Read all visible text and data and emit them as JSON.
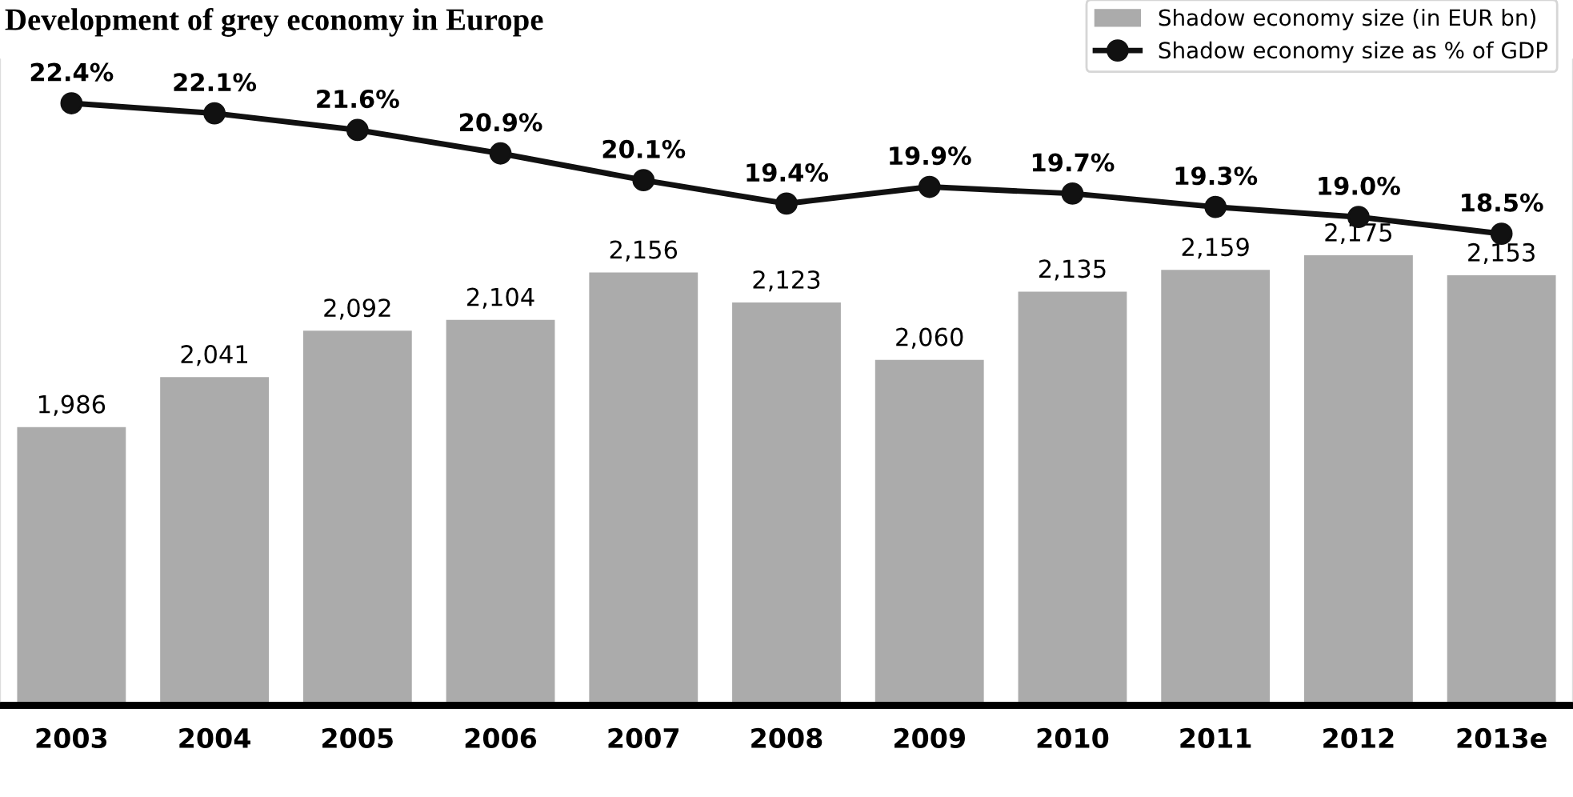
{
  "chart_data": {
    "type": "bar",
    "title": "Development of grey economy in Europe",
    "categories": [
      "2003",
      "2004",
      "2005",
      "2006",
      "2007",
      "2008",
      "2009",
      "2010",
      "2011",
      "2012",
      "2013e"
    ],
    "series": [
      {
        "name": "Shadow economy size (in EUR bn)",
        "color": "#ababab",
        "values": [
          1986,
          2041,
          2092,
          2104,
          2156,
          2123,
          2060,
          2135,
          2159,
          2175,
          2153
        ],
        "value_labels": [
          "1,986",
          "2,041",
          "2,092",
          "2,104",
          "2,156",
          "2,123",
          "2,060",
          "2,135",
          "2,159",
          "2,175",
          "2,153"
        ]
      },
      {
        "name": "Shadow economy size as % of GDP",
        "type": "line",
        "axis": "y2",
        "color": "#111111",
        "marker": "circle",
        "values": [
          22.4,
          22.1,
          21.6,
          20.9,
          20.1,
          19.4,
          19.9,
          19.7,
          19.3,
          19.0,
          18.5
        ],
        "value_labels": [
          "22.4%",
          "22.1%",
          "21.6%",
          "20.9%",
          "20.1%",
          "19.4%",
          "19.9%",
          "19.7%",
          "19.3%",
          "19.0%",
          "18.5%"
        ]
      }
    ],
    "ylim": [
      1680,
      2390
    ],
    "y2lim": [
      4.4,
      23.7
    ],
    "tick_labels": "x",
    "legend": "top right"
  }
}
